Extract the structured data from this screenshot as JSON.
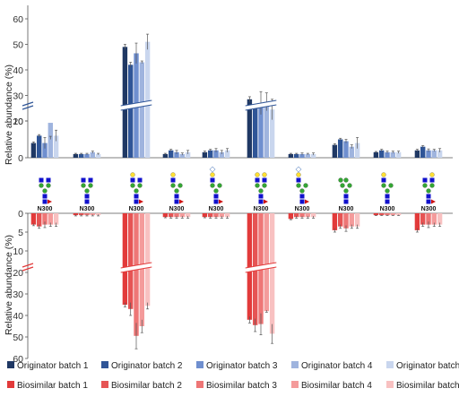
{
  "chart_data": {
    "type": "bar",
    "ylabel_top": "Relative abundance (%)",
    "ylabel_bottom": "Relative abundance (%)",
    "top_ticks": [
      0,
      10,
      20,
      30,
      40,
      50,
      60
    ],
    "bottom_ticks": [
      0,
      5,
      10,
      20,
      30,
      40,
      50,
      60
    ],
    "axis_break": "between 10 and 20 (%)",
    "glycan_site": "N300",
    "glycan_labels": [
      "N300",
      "N300",
      "N300",
      "N300",
      "N300",
      "N300",
      "N300",
      "N300",
      "N300",
      "N300"
    ],
    "legend_placement": "bottom",
    "colors": {
      "originator": [
        "#1f3864",
        "#2f5597",
        "#6f8fcf",
        "#9fb4de",
        "#c9d6ee"
      ],
      "biosimilar": [
        "#e23a3a",
        "#e65454",
        "#ee7676",
        "#f49b9b",
        "#f8c1c1"
      ],
      "glycan_blue": "#1111cc",
      "glycan_green": "#33a633",
      "glycan_yellow": "#ffe033",
      "glycan_red": "#cc1111"
    },
    "originator_series": [
      {
        "name": "Originator batch 1",
        "values": [
          4.0,
          1.0,
          49.0,
          1.0,
          1.5,
          28.5,
          1.0,
          3.5,
          1.5,
          2.0
        ],
        "errors": [
          0.3,
          0.2,
          1.0,
          0.2,
          0.3,
          1.0,
          0.2,
          0.3,
          0.2,
          0.3
        ]
      },
      {
        "name": "Originator batch 2",
        "values": [
          6.0,
          1.0,
          42.0,
          2.0,
          2.0,
          25.5,
          1.0,
          5.0,
          2.0,
          3.0
        ],
        "errors": [
          0.3,
          0.2,
          1.0,
          0.3,
          0.3,
          1.0,
          0.2,
          0.3,
          0.3,
          0.3
        ]
      },
      {
        "name": "Originator batch 3",
        "values": [
          4.0,
          1.0,
          46.5,
          1.5,
          2.0,
          27.0,
          1.0,
          4.5,
          1.5,
          2.0
        ],
        "errors": [
          1.5,
          0.2,
          4.0,
          0.5,
          0.5,
          4.5,
          0.3,
          0.5,
          0.3,
          0.4
        ]
      },
      {
        "name": "Originator batch 4",
        "values": [
          9.5,
          1.5,
          43.0,
          1.0,
          1.5,
          27.5,
          1.0,
          3.0,
          1.5,
          2.0
        ],
        "errors": [
          4.5,
          0.3,
          0.5,
          0.3,
          0.5,
          3.5,
          0.2,
          0.5,
          0.3,
          0.3
        ]
      },
      {
        "name": "Originator batch 5",
        "values": [
          6.0,
          1.0,
          51.0,
          1.5,
          2.0,
          24.5,
          1.0,
          4.0,
          1.5,
          2.0
        ],
        "errors": [
          1.5,
          0.2,
          3.0,
          0.5,
          0.5,
          4.0,
          0.3,
          1.5,
          0.3,
          0.5
        ]
      }
    ],
    "biosimilar_series": [
      {
        "name": "Biosimilar batch 1",
        "values": [
          3.0,
          0.5,
          35.0,
          1.0,
          1.0,
          42.0,
          1.5,
          4.5,
          0.5,
          4.5
        ],
        "errors": [
          0.3,
          0.2,
          1.0,
          0.2,
          0.2,
          1.5,
          0.2,
          0.5,
          0.1,
          0.5
        ]
      },
      {
        "name": "Biosimilar batch 2",
        "values": [
          3.5,
          0.5,
          37.0,
          1.0,
          1.0,
          44.5,
          1.0,
          3.5,
          0.5,
          3.0
        ],
        "errors": [
          0.5,
          0.2,
          3.0,
          0.3,
          0.3,
          3.0,
          0.3,
          0.5,
          0.1,
          0.5
        ]
      },
      {
        "name": "Biosimilar batch 3",
        "values": [
          3.0,
          0.5,
          49.5,
          1.0,
          1.0,
          44.0,
          1.0,
          4.0,
          0.5,
          3.0
        ],
        "errors": [
          0.8,
          0.2,
          6.0,
          0.3,
          0.3,
          5.0,
          0.3,
          0.8,
          0.1,
          0.8
        ]
      },
      {
        "name": "Biosimilar batch 4",
        "values": [
          3.0,
          0.5,
          45.0,
          1.0,
          1.0,
          38.0,
          1.0,
          3.5,
          0.5,
          3.0
        ],
        "errors": [
          0.5,
          0.2,
          3.0,
          0.3,
          0.3,
          0.5,
          0.3,
          0.5,
          0.1,
          0.5
        ]
      },
      {
        "name": "Biosimilar batch 5",
        "values": [
          3.0,
          0.5,
          35.5,
          1.0,
          1.0,
          48.5,
          1.0,
          3.5,
          0.5,
          3.0
        ],
        "errors": [
          0.5,
          0.2,
          1.5,
          0.3,
          0.3,
          4.5,
          0.3,
          0.5,
          0.1,
          0.5
        ]
      }
    ]
  }
}
